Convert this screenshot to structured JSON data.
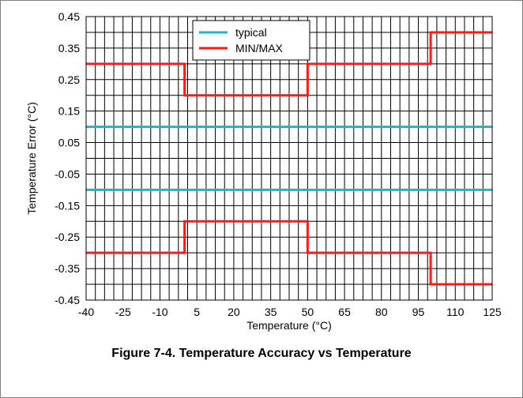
{
  "caption": "Figure 7-4. Temperature Accuracy vs Temperature",
  "chart_data": {
    "type": "line",
    "xlabel": "Temperature (°C)",
    "ylabel": "Temperature Error (°C)",
    "xlim": [
      -40,
      125
    ],
    "ylim": [
      -0.45,
      0.45
    ],
    "x_ticks": [
      -40,
      -25,
      -10,
      5,
      20,
      35,
      50,
      65,
      80,
      95,
      110,
      125
    ],
    "x_tick_labels": [
      "-40",
      "-25",
      "-10",
      "5",
      "20",
      "35",
      "50",
      "65",
      "80",
      "95",
      "110",
      "125"
    ],
    "y_ticks": [
      -0.45,
      -0.35,
      -0.25,
      -0.15,
      -0.05,
      0.05,
      0.15,
      0.25,
      0.35,
      0.45
    ],
    "y_tick_labels": [
      "-0.45",
      "-0.35",
      "-0.25",
      "-0.15",
      "-0.05",
      "0.05",
      "0.15",
      "0.25",
      "0.35",
      "0.45"
    ],
    "grid": true,
    "legend_position": "top-center",
    "series": [
      {
        "name": "typical",
        "color": "#1fb5c4",
        "step": false,
        "points": [
          [
            -40,
            0.1
          ],
          [
            125,
            0.1
          ]
        ]
      },
      {
        "name": "typical",
        "color": "#1fb5c4",
        "step": false,
        "hide_in_legend": true,
        "points": [
          [
            -40,
            -0.1
          ],
          [
            125,
            -0.1
          ]
        ]
      },
      {
        "name": "MIN/MAX",
        "color": "#ff1a1a",
        "step": true,
        "points": [
          [
            -40,
            0.3
          ],
          [
            0,
            0.3
          ],
          [
            0,
            0.2
          ],
          [
            50,
            0.2
          ],
          [
            50,
            0.3
          ],
          [
            100,
            0.3
          ],
          [
            100,
            0.4
          ],
          [
            125,
            0.4
          ]
        ]
      },
      {
        "name": "MIN/MAX",
        "color": "#ff1a1a",
        "step": true,
        "hide_in_legend": true,
        "points": [
          [
            -40,
            -0.3
          ],
          [
            0,
            -0.3
          ],
          [
            0,
            -0.2
          ],
          [
            50,
            -0.2
          ],
          [
            50,
            -0.3
          ],
          [
            100,
            -0.3
          ],
          [
            100,
            -0.4
          ],
          [
            125,
            -0.4
          ]
        ]
      }
    ],
    "legend": [
      {
        "label": "typical",
        "color": "#1fb5c4"
      },
      {
        "label": "MIN/MAX",
        "color": "#ff1a1a"
      }
    ]
  }
}
